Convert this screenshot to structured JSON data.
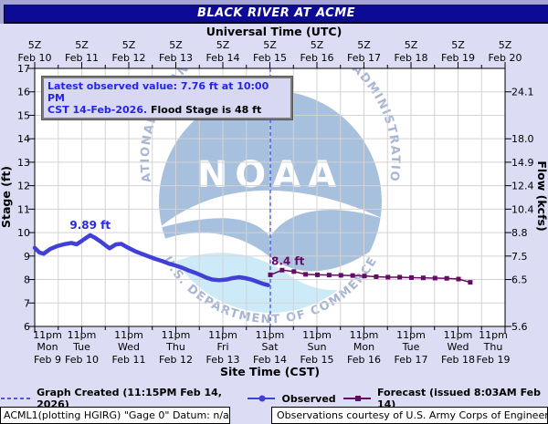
{
  "header": {
    "title": "BLACK RIVER AT ACME",
    "subtitle": "Universal Time (UTC)"
  },
  "info_box": {
    "line1": "Latest observed value: 7.76 ft at 10:00 PM",
    "line2_blue": "CST 14-Feb-2026.",
    "line2_black": " Flood Stage is 48 ft"
  },
  "annotations": {
    "observed_peak": "9.89 ft",
    "forecast_peak": "8.4 ft"
  },
  "legend": {
    "created_label": "Graph Created (11:15PM Feb 14, 2026)",
    "observed_label": "Observed",
    "forecast_label": "Forecast (issued 8:03AM Feb 14)"
  },
  "footer": {
    "station": "ACML1(plotting HGIRG) \"Gage 0\" Datum: n/a",
    "credit": "Observations courtesy of U.S. Army Corps of Engineers"
  },
  "watermark": {
    "ring_top": "NATIONAL OCEANIC AND ATMOSPHERIC ADMINISTRATION",
    "ring_bottom": "U.S. DEPARTMENT OF COMMERCE",
    "center": "NOAA"
  },
  "colors": {
    "page_bg": "#dcdcf4",
    "header_strip": "#a5a5d6",
    "title_bg": "#0d0a96",
    "plot_bg": "#ffffff",
    "grid": "#d3d3d3",
    "axis": "#000000",
    "observed": "#4040d8",
    "forecast": "#660a66",
    "created_line": "#2828dc",
    "info_blue": "#2424ea",
    "logo_blue": "#a7c0de",
    "logo_cyan": "#cdeaf8",
    "logo_ring_text": "#a8b6d4"
  },
  "chart_data": {
    "type": "line",
    "title": "BLACK RIVER AT ACME",
    "x_axis": {
      "bottom_label": "Site Time (CST)",
      "top_label": "Universal Time (UTC)",
      "top_ticks": [
        {
          "z": "5Z",
          "date": "Feb 10"
        },
        {
          "z": "5Z",
          "date": "Feb 11"
        },
        {
          "z": "5Z",
          "date": "Feb 12"
        },
        {
          "z": "5Z",
          "date": "Feb 13"
        },
        {
          "z": "5Z",
          "date": "Feb 14"
        },
        {
          "z": "5Z",
          "date": "Feb 15"
        },
        {
          "z": "5Z",
          "date": "Feb 16"
        },
        {
          "z": "5Z",
          "date": "Feb 17"
        },
        {
          "z": "5Z",
          "date": "Feb 18"
        },
        {
          "z": "5Z",
          "date": "Feb 19"
        },
        {
          "z": "5Z",
          "date": "Feb 20"
        }
      ],
      "bottom_ticks": [
        {
          "time": "11pm",
          "day": "Mon",
          "date": "Feb 9"
        },
        {
          "time": "11pm",
          "day": "Tue",
          "date": "Feb 10"
        },
        {
          "time": "11pm",
          "day": "Wed",
          "date": "Feb 11"
        },
        {
          "time": "11pm",
          "day": "Thu",
          "date": "Feb 12"
        },
        {
          "time": "11pm",
          "day": "Fri",
          "date": "Feb 13"
        },
        {
          "time": "11pm",
          "day": "Sat",
          "date": "Feb 14"
        },
        {
          "time": "11pm",
          "day": "Sun",
          "date": "Feb 15"
        },
        {
          "time": "11pm",
          "day": "Mon",
          "date": "Feb 16"
        },
        {
          "time": "11pm",
          "day": "Tue",
          "date": "Feb 17"
        },
        {
          "time": "11pm",
          "day": "Wed",
          "date": "Feb 18"
        },
        {
          "time": "11pm",
          "day": "Thu",
          "date": "Feb 19"
        }
      ]
    },
    "y_left": {
      "label": "Stage (ft)",
      "min": 6,
      "max": 17,
      "ticks": [
        6,
        7,
        8,
        9,
        10,
        11,
        12,
        13,
        14,
        15,
        16,
        17
      ]
    },
    "y_right": {
      "label": "Flow (kcfs)",
      "ticks": [
        {
          "flow": "24.1",
          "at_stage": 16
        },
        {
          "flow": "18.0",
          "at_stage": 14
        },
        {
          "flow": "14.9",
          "at_stage": 13
        },
        {
          "flow": "12.4",
          "at_stage": 12
        },
        {
          "flow": "10.4",
          "at_stage": 11
        },
        {
          "flow": "8.8",
          "at_stage": 10
        },
        {
          "flow": "7.5",
          "at_stage": 9
        },
        {
          "flow": "6.5",
          "at_stage": 8
        },
        {
          "flow": "5.6",
          "at_stage": 6
        }
      ]
    },
    "current_time_day": 5.01,
    "flood_stage_ft": 48,
    "latest_observed": {
      "value_ft": 7.76,
      "time": "10:00 PM CST 14-Feb-2026"
    },
    "series": [
      {
        "name": "Observed",
        "marker": "circle",
        "points": [
          [
            0,
            9.35
          ],
          [
            0.1,
            9.15
          ],
          [
            0.19,
            9.1
          ],
          [
            0.33,
            9.3
          ],
          [
            0.47,
            9.42
          ],
          [
            0.62,
            9.5
          ],
          [
            0.78,
            9.56
          ],
          [
            0.89,
            9.5
          ],
          [
            1.01,
            9.66
          ],
          [
            1.11,
            9.8
          ],
          [
            1.18,
            9.89
          ],
          [
            1.28,
            9.78
          ],
          [
            1.4,
            9.62
          ],
          [
            1.51,
            9.45
          ],
          [
            1.59,
            9.33
          ],
          [
            1.73,
            9.5
          ],
          [
            1.84,
            9.52
          ],
          [
            1.98,
            9.36
          ],
          [
            2.14,
            9.2
          ],
          [
            2.27,
            9.1
          ],
          [
            2.43,
            8.98
          ],
          [
            2.56,
            8.88
          ],
          [
            2.72,
            8.78
          ],
          [
            2.85,
            8.68
          ],
          [
            2.99,
            8.6
          ],
          [
            3.15,
            8.49
          ],
          [
            3.28,
            8.38
          ],
          [
            3.42,
            8.28
          ],
          [
            3.53,
            8.19
          ],
          [
            3.65,
            8.08
          ],
          [
            3.77,
            8.0
          ],
          [
            3.92,
            7.97
          ],
          [
            4.08,
            8.0
          ],
          [
            4.21,
            8.06
          ],
          [
            4.35,
            8.1
          ],
          [
            4.47,
            8.06
          ],
          [
            4.6,
            8.0
          ],
          [
            4.74,
            7.9
          ],
          [
            4.85,
            7.82
          ],
          [
            4.96,
            7.76
          ]
        ]
      },
      {
        "name": "Forecast",
        "marker": "square",
        "points": [
          [
            5.01,
            8.2
          ],
          [
            5.26,
            8.4
          ],
          [
            5.51,
            8.34
          ],
          [
            5.76,
            8.22
          ],
          [
            6.01,
            8.2
          ],
          [
            6.26,
            8.19
          ],
          [
            6.51,
            8.18
          ],
          [
            6.76,
            8.17
          ],
          [
            7.01,
            8.15
          ],
          [
            7.26,
            8.12
          ],
          [
            7.51,
            8.1
          ],
          [
            7.76,
            8.1
          ],
          [
            8.01,
            8.08
          ],
          [
            8.26,
            8.07
          ],
          [
            8.51,
            8.06
          ],
          [
            8.76,
            8.05
          ],
          [
            9.01,
            8.02
          ],
          [
            9.26,
            7.88
          ]
        ]
      }
    ]
  }
}
